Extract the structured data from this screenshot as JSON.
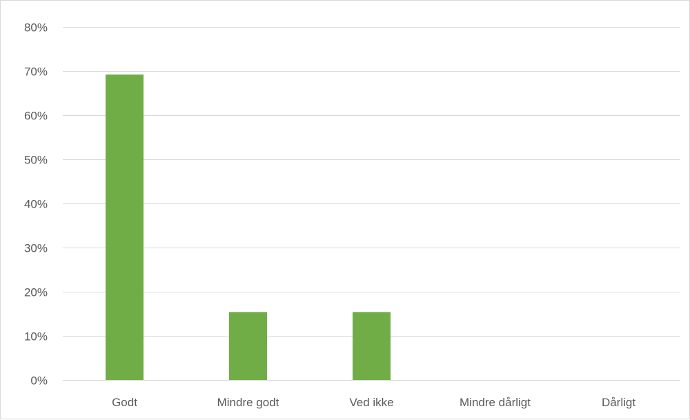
{
  "chart_data": {
    "type": "bar",
    "title": "",
    "xlabel": "",
    "ylabel": "",
    "categories": [
      "Godt",
      "Mindre godt",
      "Ved ikke",
      "Mindre dårligt",
      "Dårligt"
    ],
    "values": [
      0.692,
      0.154,
      0.154,
      0.0,
      0.0
    ],
    "ylim": [
      0,
      0.8
    ],
    "yticks": [
      0,
      0.1,
      0.2,
      0.3,
      0.4,
      0.5,
      0.6,
      0.7,
      0.8
    ],
    "ytick_labels": [
      "0%",
      "10%",
      "20%",
      "30%",
      "40%",
      "50%",
      "60%",
      "70%",
      "80%"
    ],
    "grid": true,
    "legend": "none",
    "colors": {
      "bar": "#70ad47",
      "grid": "#d9d9d9",
      "axis": "#d9d9d9",
      "text": "#595959"
    }
  }
}
